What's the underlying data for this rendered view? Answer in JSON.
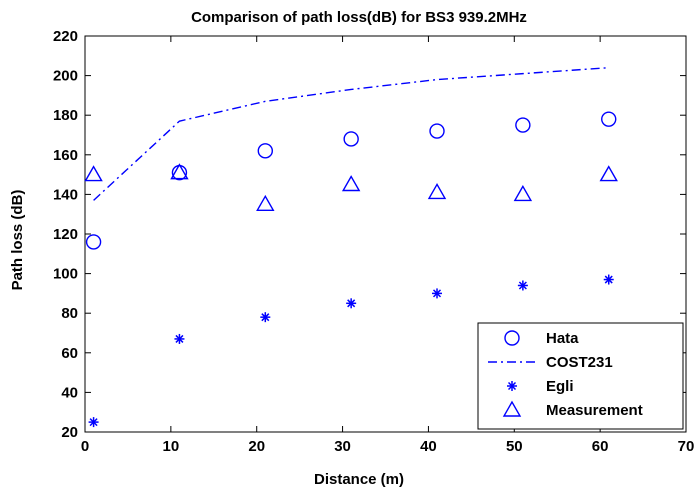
{
  "chart_data": {
    "type": "scatter",
    "title": "Comparison of path loss(dB) for BS3 939.2MHz",
    "xlabel": "Distance (m)",
    "ylabel": "Path loss (dB)",
    "xlim": [
      0,
      70
    ],
    "ylim": [
      20,
      220
    ],
    "xticks": [
      0,
      10,
      20,
      30,
      40,
      50,
      60,
      70
    ],
    "yticks": [
      20,
      40,
      60,
      80,
      100,
      120,
      140,
      160,
      180,
      200,
      220
    ],
    "grid": false,
    "legend_position": "bottom-right",
    "series": [
      {
        "name": "Hata",
        "marker": "circle",
        "line": "none",
        "color": "#0000ff",
        "x": [
          1,
          11,
          21,
          31,
          41,
          51,
          61
        ],
        "y": [
          116,
          151,
          162,
          168,
          172,
          175,
          178
        ]
      },
      {
        "name": "COST231",
        "marker": "none",
        "line": "dashdot",
        "color": "#0000ff",
        "x": [
          1,
          11,
          21,
          31,
          41,
          51,
          61
        ],
        "y": [
          137,
          177,
          187,
          193,
          198,
          201,
          204
        ]
      },
      {
        "name": "Egli",
        "marker": "asterisk",
        "line": "none",
        "color": "#0000ff",
        "x": [
          1,
          11,
          21,
          31,
          41,
          51,
          61
        ],
        "y": [
          25,
          67,
          78,
          85,
          90,
          94,
          97
        ]
      },
      {
        "name": "Measurement",
        "marker": "triangle",
        "line": "none",
        "color": "#0000ff",
        "x": [
          1,
          11,
          21,
          31,
          41,
          51,
          61
        ],
        "y": [
          150,
          151,
          135,
          145,
          141,
          140,
          150
        ]
      }
    ]
  }
}
